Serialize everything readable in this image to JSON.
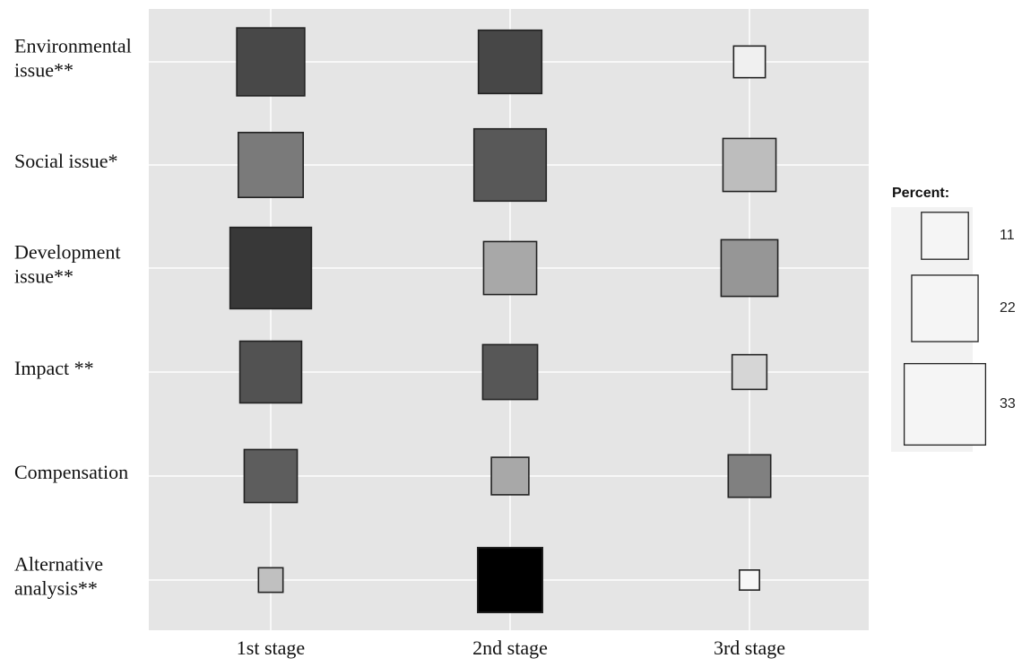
{
  "chart_data": {
    "type": "heatmap",
    "title": "",
    "xlabel": "",
    "ylabel": "",
    "columns": [
      "1st stage",
      "2nd stage",
      "3rd stage"
    ],
    "rows": [
      "Environmental issue**",
      "Social issue*",
      "Development issue**",
      "Impact **",
      "Compensation",
      "Alternative analysis**"
    ],
    "row_label_lines": [
      [
        "Environmental",
        "issue**"
      ],
      [
        "Social issue*"
      ],
      [
        "Development",
        "issue**"
      ],
      [
        "Impact **"
      ],
      [
        "Compensation"
      ],
      [
        "Alternative",
        "analysis**"
      ]
    ],
    "encoding": "square area = percent; fill shade = residual (darker = higher)",
    "percent": [
      [
        23,
        20,
        5
      ],
      [
        21,
        26,
        14
      ],
      [
        33,
        14,
        16
      ],
      [
        19,
        15,
        6
      ],
      [
        14,
        7,
        9
      ],
      [
        3,
        21,
        2
      ]
    ],
    "shade": [
      [
        "#484848",
        "#474747",
        "#f0f0f0"
      ],
      [
        "#7a7a7a",
        "#585858",
        "#bdbdbd"
      ],
      [
        "#383838",
        "#a8a8a8",
        "#969696"
      ],
      [
        "#525252",
        "#575757",
        "#d6d6d6"
      ],
      [
        "#5d5d5d",
        "#a8a8a8",
        "#808080"
      ],
      [
        "#c0c0c0",
        "#000000",
        "#f7f7f7"
      ]
    ],
    "legend": {
      "title": "Percent:",
      "position": "right",
      "items": [
        {
          "label": "11",
          "value": 11
        },
        {
          "label": "22",
          "value": 22
        },
        {
          "label": "33",
          "value": 33
        }
      ]
    },
    "colors": {
      "panel": "#e5e5e5",
      "grid": "#ffffff",
      "legend_bg": "#f2f2f2",
      "legend_key": "#f5f5f5",
      "stroke": "#222222"
    },
    "grid": true
  }
}
